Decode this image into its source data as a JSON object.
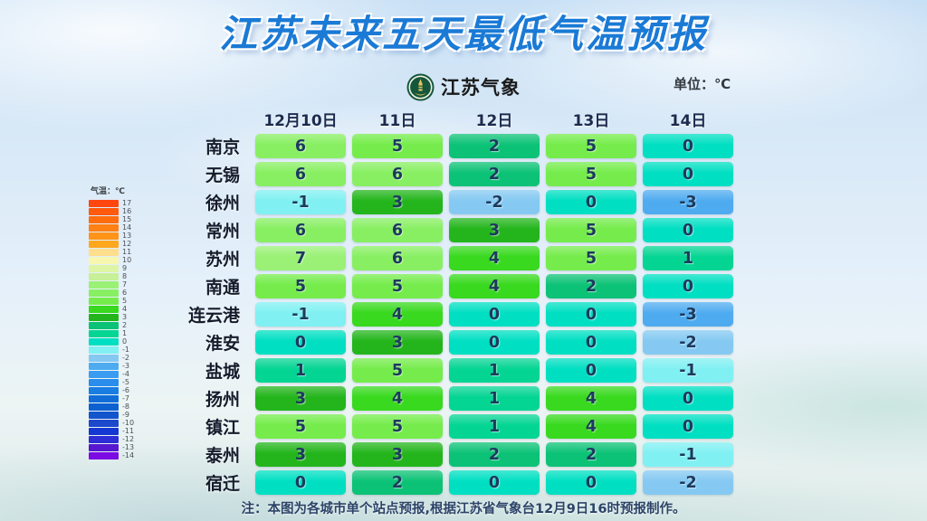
{
  "header": {
    "title": "江苏未来五天最低气温预报",
    "logo_text": "江苏气象",
    "unit_label": "单位：℃"
  },
  "legend": {
    "title": "气温：℃",
    "entries": [
      {
        "label": "17",
        "color": "#ff470f"
      },
      {
        "label": "16",
        "color": "#ff5a0d"
      },
      {
        "label": "15",
        "color": "#ff6d0e"
      },
      {
        "label": "14",
        "color": "#ff8013"
      },
      {
        "label": "13",
        "color": "#ff9418"
      },
      {
        "label": "12",
        "color": "#ffa81e"
      },
      {
        "label": "11",
        "color": "#ffdf8e"
      },
      {
        "label": "10",
        "color": "#f7f7b0"
      },
      {
        "label": "9",
        "color": "#def5a6"
      },
      {
        "label": "8",
        "color": "#c7f098"
      },
      {
        "label": "7",
        "color": "#9af176"
      },
      {
        "label": "6",
        "color": "#88ef62"
      },
      {
        "label": "5",
        "color": "#75ec4b"
      },
      {
        "label": "4",
        "color": "#38d91e"
      },
      {
        "label": "3",
        "color": "#24b51c"
      },
      {
        "label": "2",
        "color": "#0cc276"
      },
      {
        "label": "1",
        "color": "#05d593"
      },
      {
        "label": "0",
        "color": "#00dfc2"
      },
      {
        "label": "-1",
        "color": "#80f0f2"
      },
      {
        "label": "-2",
        "color": "#85c9f2"
      },
      {
        "label": "-3",
        "color": "#4fabf0"
      },
      {
        "label": "-4",
        "color": "#3a9cf0"
      },
      {
        "label": "-5",
        "color": "#2a8deb"
      },
      {
        "label": "-6",
        "color": "#1a7de2"
      },
      {
        "label": "-7",
        "color": "#106dd8"
      },
      {
        "label": "-8",
        "color": "#0d60d0"
      },
      {
        "label": "-9",
        "color": "#1355cc"
      },
      {
        "label": "-10",
        "color": "#1c49cc"
      },
      {
        "label": "-11",
        "color": "#1538d2"
      },
      {
        "label": "-12",
        "color": "#2e2ed6"
      },
      {
        "label": "-13",
        "color": "#5517cf"
      },
      {
        "label": "-14",
        "color": "#7b0be2"
      }
    ]
  },
  "forecast_table": {
    "date_headers": [
      "12月10日",
      "11日",
      "12日",
      "13日",
      "14日"
    ],
    "rows": [
      {
        "city": "南京",
        "values": [
          6,
          5,
          2,
          5,
          0
        ]
      },
      {
        "city": "无锡",
        "values": [
          6,
          6,
          2,
          5,
          0
        ]
      },
      {
        "city": "徐州",
        "values": [
          -1,
          3,
          -2,
          0,
          -3
        ]
      },
      {
        "city": "常州",
        "values": [
          6,
          6,
          3,
          5,
          0
        ]
      },
      {
        "city": "苏州",
        "values": [
          7,
          6,
          4,
          5,
          1
        ]
      },
      {
        "city": "南通",
        "values": [
          5,
          5,
          4,
          2,
          0
        ]
      },
      {
        "city": "连云港",
        "values": [
          -1,
          4,
          0,
          0,
          -3
        ]
      },
      {
        "city": "淮安",
        "values": [
          0,
          3,
          0,
          0,
          -2
        ]
      },
      {
        "city": "盐城",
        "values": [
          1,
          5,
          1,
          0,
          -1
        ]
      },
      {
        "city": "扬州",
        "values": [
          3,
          4,
          1,
          4,
          0
        ]
      },
      {
        "city": "镇江",
        "values": [
          5,
          5,
          1,
          4,
          0
        ]
      },
      {
        "city": "泰州",
        "values": [
          3,
          3,
          2,
          2,
          -1
        ]
      },
      {
        "city": "宿迁",
        "values": [
          0,
          2,
          0,
          0,
          -2
        ]
      }
    ]
  },
  "note": "注：本图为各城市单个站点预报,根据江苏省气象台12月9日16时预报制作。",
  "chart_data": {
    "type": "heatmap",
    "title": "江苏未来五天最低气温预报",
    "unit": "℃",
    "x_labels": [
      "12月10日",
      "11日",
      "12日",
      "13日",
      "14日"
    ],
    "y_labels": [
      "南京",
      "无锡",
      "徐州",
      "常州",
      "苏州",
      "南通",
      "连云港",
      "淮安",
      "盐城",
      "扬州",
      "镇江",
      "泰州",
      "宿迁"
    ],
    "values": [
      [
        6,
        5,
        2,
        5,
        0
      ],
      [
        6,
        6,
        2,
        5,
        0
      ],
      [
        -1,
        3,
        -2,
        0,
        -3
      ],
      [
        6,
        6,
        3,
        5,
        0
      ],
      [
        7,
        6,
        4,
        5,
        1
      ],
      [
        5,
        5,
        4,
        2,
        0
      ],
      [
        -1,
        4,
        0,
        0,
        -3
      ],
      [
        0,
        3,
        0,
        0,
        -2
      ],
      [
        1,
        5,
        1,
        0,
        -1
      ],
      [
        3,
        4,
        1,
        4,
        0
      ],
      [
        5,
        5,
        1,
        4,
        0
      ],
      [
        3,
        3,
        2,
        2,
        -1
      ],
      [
        0,
        2,
        0,
        0,
        -2
      ]
    ],
    "colorbar": {
      "label": "气温：℃",
      "max": 17,
      "min": -14
    },
    "note": "注：本图为各城市单个站点预报,根据江苏省气象台12月9日16时预报制作。"
  }
}
